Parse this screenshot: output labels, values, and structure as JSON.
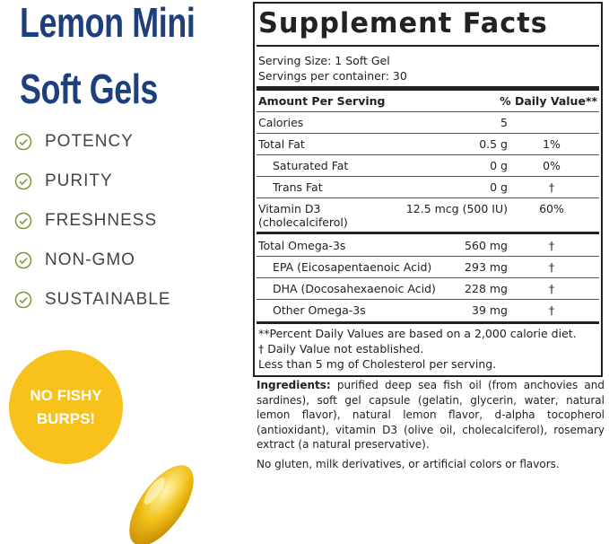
{
  "product": {
    "title_lines": [
      "Lemon Mini",
      "Soft Gels"
    ],
    "features": [
      "POTENCY",
      "PURITY",
      "FRESHNESS",
      "NON-GMO",
      "SUSTAINABLE"
    ],
    "badge_lines": [
      "NO FISHY",
      "BURPS!"
    ]
  },
  "facts": {
    "title": "Supplement Facts",
    "serving_size": "Serving Size: 1 Soft Gel",
    "servings": "Servings per container: 30",
    "header": [
      "Amount Per Serving",
      "% Daily Value**"
    ],
    "rows": [
      [
        "Calories",
        "5"
      ],
      [
        "Total Fat",
        "0.5 g",
        "1%"
      ],
      [
        "Saturated Fat",
        "0 g",
        "0%"
      ],
      [
        "Trans Fat",
        "0 g",
        "†"
      ],
      [
        "Vitamin D3",
        "12.5 mcg (500 IU)",
        "60%",
        "(cholecalciferol)"
      ],
      [
        "Total Omega-3s",
        "560 mg",
        "†"
      ],
      [
        "EPA (Eicosapentaenoic Acid)",
        "293 mg",
        "†"
      ],
      [
        "DHA (Docosahexaenoic Acid)",
        "228 mg",
        "†"
      ],
      [
        "Other Omega-3s",
        "39 mg",
        "†"
      ]
    ],
    "footnotes": [
      "**Percent Daily Values are based on a 2,000 calorie diet.",
      "†  Daily Value not established.",
      "Less than 5 mg of Cholesterol per serving."
    ]
  },
  "ingredients": {
    "label": "Ingredients:",
    "text": "purified deep sea fish oil (from anchovies and sardines), soft gel capsule (gelatin, glycerin, water, natural lemon flavor), natural lemon flavor, d-alpha tocopherol (antioxidant), vitamin D3 (olive oil, cholecalciferol), rosemary extract (a natural preservative).",
    "note": "No gluten, milk derivatives, or artificial colors or flavors."
  }
}
